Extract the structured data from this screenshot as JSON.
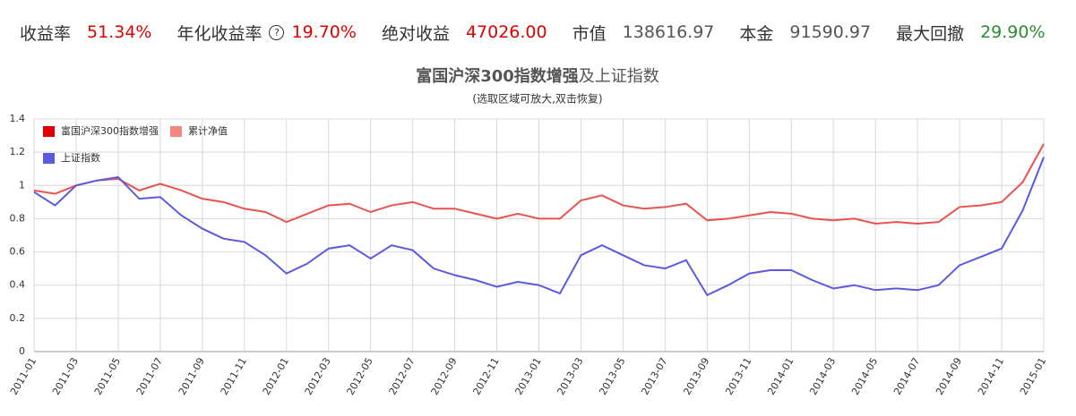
{
  "stats": [
    {
      "label": "收益率",
      "value": "51.34%"
    },
    {
      "label": "年化收益率",
      "value": "19.70%"
    },
    {
      "label": "绝对收益",
      "value": "47026.00"
    },
    {
      "label": "市值",
      "value": "138616.97"
    },
    {
      "label": "本金",
      "value": "91590.97"
    },
    {
      "label": "最大回撤",
      "value": "29.90%"
    }
  ],
  "chart_data": {
    "type": "line",
    "title": "富国沪深300指数增强",
    "title_suffix": "及上证指数",
    "subtitle": "(选取区域可放大,双击恢复)",
    "x": [
      "2011-01",
      "2011-02",
      "2011-03",
      "2011-04",
      "2011-05",
      "2011-06",
      "2011-07",
      "2011-08",
      "2011-09",
      "2011-10",
      "2011-11",
      "2011-12",
      "2012-01",
      "2012-02",
      "2012-03",
      "2012-04",
      "2012-05",
      "2012-06",
      "2012-07",
      "2012-08",
      "2012-09",
      "2012-10",
      "2012-11",
      "2012-12",
      "2013-01",
      "2013-02",
      "2013-03",
      "2013-04",
      "2013-05",
      "2013-06",
      "2013-07",
      "2013-08",
      "2013-09",
      "2013-10",
      "2013-11",
      "2013-12",
      "2014-01",
      "2014-02",
      "2014-03",
      "2014-04",
      "2014-05",
      "2014-06",
      "2014-07",
      "2014-08",
      "2014-09",
      "2014-10",
      "2014-11",
      "2014-12",
      "2015-01"
    ],
    "series": [
      {
        "name": "富国沪深300指数增强",
        "color": "#e8534f",
        "legend_color": "#e00000",
        "values": [
          0.97,
          0.95,
          1.0,
          1.03,
          1.04,
          0.97,
          1.01,
          0.97,
          0.92,
          0.9,
          0.86,
          0.84,
          0.78,
          0.83,
          0.88,
          0.89,
          0.84,
          0.88,
          0.9,
          0.86,
          0.86,
          0.83,
          0.8,
          0.83,
          0.8,
          0.8,
          0.91,
          0.94,
          0.88,
          0.86,
          0.87,
          0.89,
          0.79,
          0.8,
          0.82,
          0.84,
          0.83,
          0.8,
          0.79,
          0.8,
          0.77,
          0.78,
          0.77,
          0.78,
          0.87,
          0.88,
          0.9,
          1.02,
          1.25
        ]
      },
      {
        "name": "累计净值",
        "color": "#f4877f",
        "legend_color": "#f4877f",
        "values": [
          null,
          null,
          null,
          null,
          null,
          null,
          null,
          null,
          null,
          null,
          null,
          null,
          null,
          null,
          null,
          null,
          null,
          null,
          null,
          null,
          null,
          null,
          null,
          null,
          null,
          null,
          null,
          null,
          null,
          null,
          null,
          null,
          null,
          null,
          null,
          null,
          null,
          null,
          null,
          null,
          null,
          null,
          null,
          null,
          null,
          null,
          null,
          null,
          null
        ]
      },
      {
        "name": "上证指数",
        "color": "#5a5ae0",
        "legend_color": "#5a5ae0",
        "values": [
          0.96,
          0.88,
          1.0,
          1.03,
          1.05,
          0.92,
          0.93,
          0.82,
          0.74,
          0.68,
          0.66,
          0.58,
          0.47,
          0.53,
          0.62,
          0.64,
          0.56,
          0.64,
          0.61,
          0.5,
          0.46,
          0.43,
          0.39,
          0.42,
          0.4,
          0.35,
          0.58,
          0.64,
          0.58,
          0.52,
          0.5,
          0.55,
          0.34,
          0.4,
          0.47,
          0.49,
          0.49,
          0.43,
          0.38,
          0.4,
          0.37,
          0.38,
          0.37,
          0.4,
          0.52,
          0.57,
          0.62,
          0.85,
          1.17
        ]
      }
    ],
    "ylim": [
      0,
      1.4
    ],
    "yticks": [
      0,
      0.2,
      0.4,
      0.6,
      0.8,
      1,
      1.2,
      1.4
    ],
    "xticks": [
      "2011-01",
      "2011-03",
      "2011-05",
      "2011-07",
      "2011-09",
      "2011-11",
      "2012-01",
      "2012-03",
      "2012-05",
      "2012-07",
      "2012-09",
      "2012-11",
      "2013-01",
      "2013-03",
      "2013-05",
      "2013-07",
      "2013-09",
      "2013-11",
      "2014-01",
      "2014-03",
      "2014-05",
      "2014-07",
      "2014-09",
      "2014-11",
      "2015-01"
    ],
    "grid": true
  }
}
